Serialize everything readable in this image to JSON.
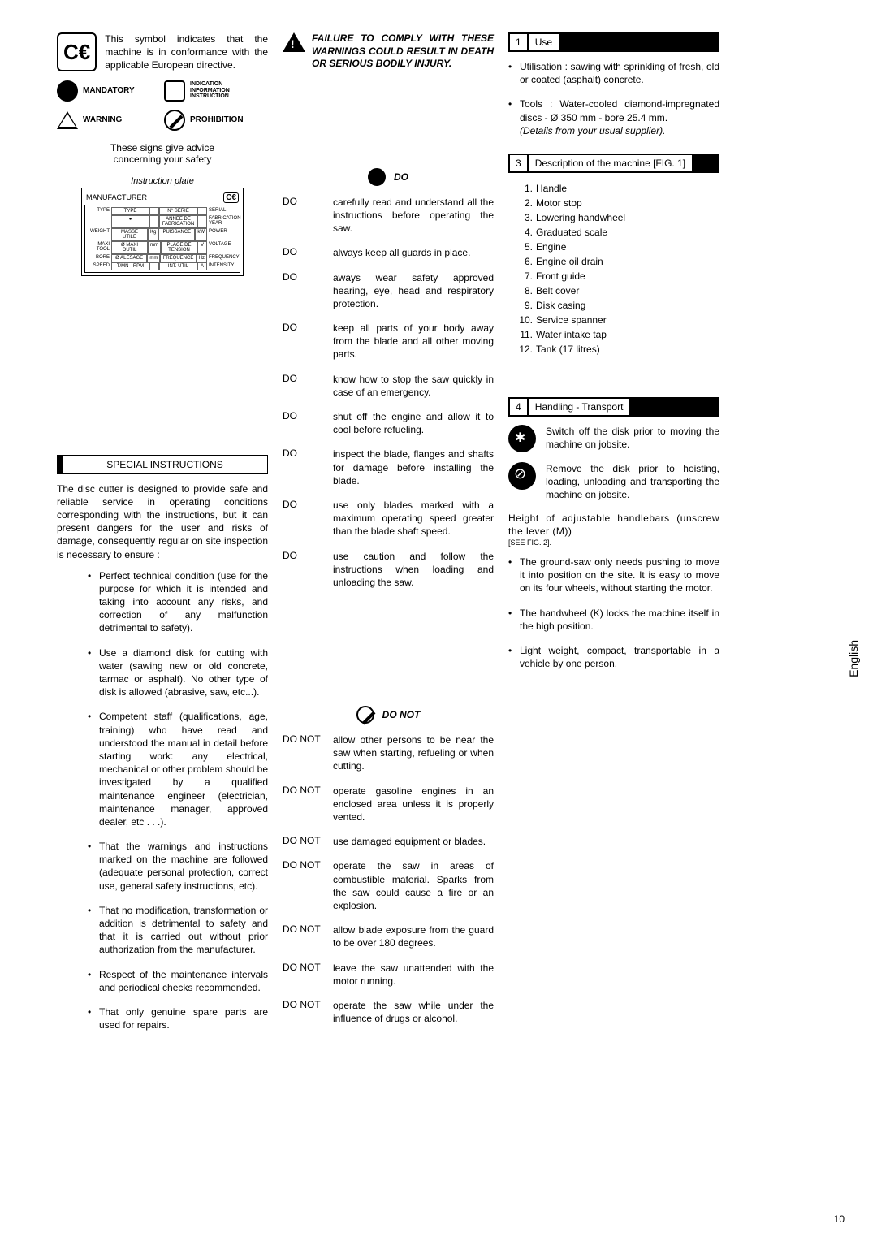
{
  "col1": {
    "ce_text": "This symbol indicates that the machine is in conformance with the applicable European directive.",
    "signs": {
      "mandatory": "MANDATORY",
      "indication": "INDICATION INFORMATION INSTRUCTION",
      "warning": "WARNING",
      "prohibition": "PROHIBITION"
    },
    "advice": "These signs give advice concerning your safety",
    "plate_title": "Instruction plate",
    "plate_manufacturer": "MANUFACTURER",
    "plate_rows_left": [
      "TYPE",
      "",
      "WEIGHT",
      "MAXI TOOL",
      "BORE",
      "SPEED"
    ],
    "plate_rows_mid1": [
      "TYPE",
      "●",
      "MASSE UTILE",
      "Ø MAXI OUTIL",
      "Ø ALESAGE",
      "T/MN - RPM"
    ],
    "plate_rows_mid2": [
      "N° SERIE",
      "ANNEE DE FABRICATION",
      "PUISSANCE",
      "PLAGE DE TENSION",
      "FREQUENCE",
      "INT. UTIL"
    ],
    "plate_rows_mid2_unit": [
      "",
      "",
      "Kg",
      "mm",
      "mm",
      ""
    ],
    "plate_rows_mid3_unit": [
      "",
      "",
      "kW",
      "V",
      "Hz",
      "A"
    ],
    "plate_rows_right": [
      "SERIAL",
      "FABRICATION YEAR",
      "POWER",
      "VOLTAGE",
      "FREQUENCY",
      "INTENSITY"
    ],
    "special_header": "SPECIAL INSTRUCTIONS",
    "special_intro": "The disc cutter is designed to provide safe and reliable service in operating conditions corresponding with the instructions, but it can present dangers for the user and risks of damage, consequently regular on site inspection is necessary to ensure :",
    "special_items": [
      "Perfect technical condition (use for the purpose for which it is intended and taking into account any risks, and correction of any malfunction detrimental to safety).",
      "Use a diamond disk for cutting with water (sawing new or old concrete, tarmac or asphalt). No other type of disk is allowed (abrasive, saw, etc...).",
      "Competent staff (qualifications, age, training) who have read and understood the manual in detail before starting work: any electrical, mechanical or other problem should be investigated by a qualified maintenance engineer (electrician, maintenance manager, approved dealer, etc . . .).",
      "That the warnings and instructions marked on the machine are followed (adequate personal protection, correct use, general safety instructions, etc).",
      "That no modification, transformation or addition is detrimental to safety and that it is carried out without prior authorization from the manufacturer.",
      "Respect of the maintenance intervals and periodical checks recommended.",
      "That only genuine spare parts are used for repairs."
    ]
  },
  "col2": {
    "warn": "FAILURE TO COMPLY WITH THESE WARNINGS COULD RESULT IN DEATH OR SERIOUS BODILY INJURY.",
    "do_label": "DO",
    "do_items": [
      "carefully read and understand all the instructions before operating the saw.",
      "always keep all guards in place.",
      "aways wear safety approved hearing, eye, head and respiratory protection.",
      "keep all parts of your body away from the blade and all other moving parts.",
      "know how to stop the saw quickly in case of an emergency.",
      "shut off the engine and allow it to cool before refueling.",
      "inspect the blade, flanges and shafts for damage before installing the blade.",
      "use only blades marked with a maximum operating speed greater than the blade shaft speed.",
      "use caution and follow the instructions when loading and unloading the saw."
    ],
    "donot_label": "DO NOT",
    "donot_items": [
      "allow other persons to be near the saw when starting, refueling or when cutting.",
      "operate gasoline engines in an enclosed area unless it is properly vented.",
      "use damaged equipment or blades.",
      "operate the saw in areas of combustible material. Sparks from the saw could cause a fire or an explosion.",
      "allow blade exposure from the guard to be over 180 degrees.",
      "leave the saw unattended with the motor running.",
      "operate the saw while under the influence of drugs or alcohol."
    ]
  },
  "col3": {
    "s1_label": "Use",
    "s1_b1": "Utilisation : sawing with sprinkling of fresh, old or coated (asphalt) concrete.",
    "s1_b2": "Tools : Water-cooled diamond-impregnated discs - Ø 350 mm - bore 25.4 mm.",
    "s1_b2_note": "(Details from your usual  supplier).",
    "s3_label": "Description of the machine  [FIG. 1]",
    "s3_items": [
      "Handle",
      "Motor stop",
      "Lowering handwheel",
      "Graduated scale",
      "Engine",
      "Engine oil drain",
      "Front guide",
      "Belt cover",
      "Disk casing",
      "Service spanner",
      "Water intake tap",
      "Tank (17 litres)"
    ],
    "s4_label": "Handling - Transport",
    "s4_t1": "Switch off the disk prior to moving the machine on jobsite.",
    "s4_t2": "Remove the disk prior to hoisting, loading, unloading and transporting the machine on jobsite.",
    "s4_height": "Height of adjustable handlebars (unscrew the lever (M))",
    "s4_fig": "[SEE FIG. 2].",
    "s4_items": [
      "The ground-saw only needs pushing to move it into position on the site.  It is easy to move on its four wheels, without starting the motor.",
      "The handwheel (K) locks the machine itself in the  high position.",
      "Light weight, compact, transportable in a vehicle by one person."
    ],
    "side_tab": "English",
    "page_num": "10"
  }
}
